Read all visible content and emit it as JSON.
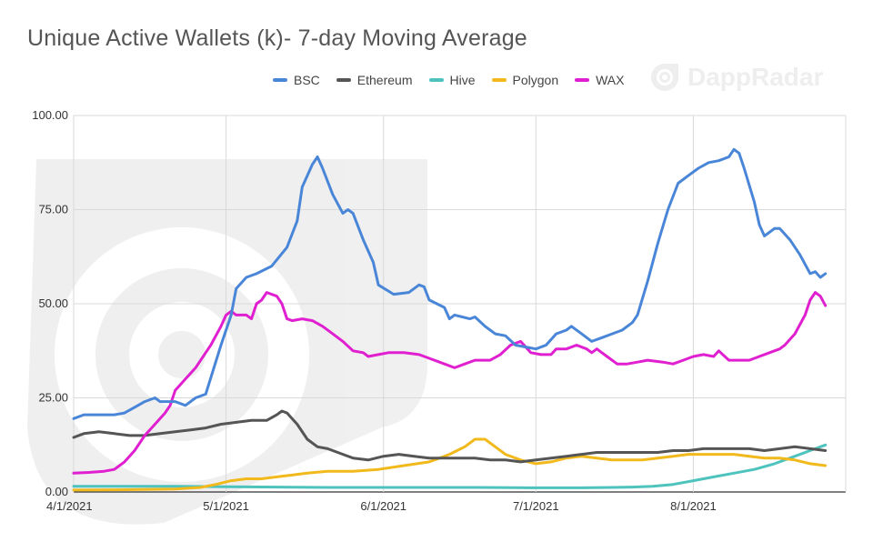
{
  "chart_data": {
    "type": "line",
    "title": "Unique Active Wallets (k)- 7-day Moving Average",
    "xlabel": "",
    "ylabel": "",
    "ylim": [
      0,
      100
    ],
    "yticks": [
      "0.00",
      "25.00",
      "50.00",
      "75.00",
      "100.00"
    ],
    "xticks": [
      "4/1/2021",
      "5/1/2021",
      "6/1/2021",
      "7/1/2021",
      "8/1/2021"
    ],
    "x_domain_days": [
      0,
      152
    ],
    "grid": true,
    "legend_position": "top-center",
    "series": [
      {
        "name": "BSC",
        "color": "#4a86d8",
        "points": [
          [
            0,
            19.5
          ],
          [
            2,
            20.5
          ],
          [
            5,
            20.5
          ],
          [
            8,
            20.5
          ],
          [
            10,
            21
          ],
          [
            12,
            22.5
          ],
          [
            14,
            24
          ],
          [
            16,
            25
          ],
          [
            17,
            24
          ],
          [
            20,
            24
          ],
          [
            22,
            23
          ],
          [
            24,
            25
          ],
          [
            26,
            26
          ],
          [
            29,
            39
          ],
          [
            31,
            47
          ],
          [
            32,
            54
          ],
          [
            34,
            57
          ],
          [
            36,
            58
          ],
          [
            39,
            60
          ],
          [
            42,
            65
          ],
          [
            44,
            72
          ],
          [
            45,
            81
          ],
          [
            47,
            87
          ],
          [
            48,
            89
          ],
          [
            49,
            86
          ],
          [
            51,
            79
          ],
          [
            53,
            74
          ],
          [
            54,
            75
          ],
          [
            55,
            74
          ],
          [
            57,
            67
          ],
          [
            59,
            61
          ],
          [
            60,
            55
          ],
          [
            63,
            52.5
          ],
          [
            66,
            53
          ],
          [
            68,
            55
          ],
          [
            69,
            54.5
          ],
          [
            70,
            51
          ],
          [
            73,
            49
          ],
          [
            74,
            46
          ],
          [
            75,
            47
          ],
          [
            78,
            46
          ],
          [
            79,
            46.5
          ],
          [
            81,
            44
          ],
          [
            83,
            42
          ],
          [
            85,
            41.5
          ],
          [
            87,
            39
          ],
          [
            89,
            38.5
          ],
          [
            91,
            38
          ],
          [
            93,
            39
          ],
          [
            95,
            42
          ],
          [
            97,
            43
          ],
          [
            98,
            44
          ],
          [
            100,
            42
          ],
          [
            102,
            40
          ],
          [
            104,
            41
          ],
          [
            106,
            42
          ],
          [
            108,
            43
          ],
          [
            110,
            45
          ],
          [
            111,
            47
          ],
          [
            113,
            56
          ],
          [
            115,
            66
          ],
          [
            117,
            75
          ],
          [
            119,
            82
          ],
          [
            121,
            84
          ],
          [
            123,
            86
          ],
          [
            125,
            87.5
          ],
          [
            127,
            88
          ],
          [
            129,
            89
          ],
          [
            130,
            91
          ],
          [
            131,
            90
          ],
          [
            132,
            86
          ],
          [
            134,
            77
          ],
          [
            135,
            71
          ],
          [
            136,
            68
          ],
          [
            138,
            70
          ],
          [
            139,
            70
          ],
          [
            141,
            67
          ],
          [
            143,
            63
          ],
          [
            145,
            58
          ],
          [
            146,
            58.5
          ],
          [
            147,
            57
          ],
          [
            148,
            58
          ]
        ]
      },
      {
        "name": "Ethereum",
        "color": "#555555",
        "points": [
          [
            0,
            14.5
          ],
          [
            2,
            15.5
          ],
          [
            5,
            16
          ],
          [
            8,
            15.5
          ],
          [
            11,
            15
          ],
          [
            14,
            15
          ],
          [
            17,
            15.5
          ],
          [
            20,
            16
          ],
          [
            23,
            16.5
          ],
          [
            26,
            17
          ],
          [
            29,
            18
          ],
          [
            32,
            18.5
          ],
          [
            35,
            19
          ],
          [
            38,
            19
          ],
          [
            40,
            20.5
          ],
          [
            41,
            21.5
          ],
          [
            42,
            21
          ],
          [
            44,
            18
          ],
          [
            46,
            14
          ],
          [
            48,
            12
          ],
          [
            50,
            11.5
          ],
          [
            52,
            10.5
          ],
          [
            55,
            9
          ],
          [
            58,
            8.5
          ],
          [
            61,
            9.5
          ],
          [
            64,
            10
          ],
          [
            67,
            9.5
          ],
          [
            70,
            9
          ],
          [
            73,
            9
          ],
          [
            76,
            9
          ],
          [
            79,
            9
          ],
          [
            82,
            8.5
          ],
          [
            85,
            8.5
          ],
          [
            88,
            8
          ],
          [
            91,
            8.5
          ],
          [
            94,
            9
          ],
          [
            97,
            9.5
          ],
          [
            100,
            10
          ],
          [
            103,
            10.5
          ],
          [
            106,
            10.5
          ],
          [
            109,
            10.5
          ],
          [
            112,
            10.5
          ],
          [
            115,
            10.5
          ],
          [
            118,
            11
          ],
          [
            121,
            11
          ],
          [
            124,
            11.5
          ],
          [
            127,
            11.5
          ],
          [
            130,
            11.5
          ],
          [
            133,
            11.5
          ],
          [
            136,
            11
          ],
          [
            139,
            11.5
          ],
          [
            142,
            12
          ],
          [
            145,
            11.5
          ],
          [
            148,
            11
          ]
        ]
      },
      {
        "name": "Hive",
        "color": "#4ec3bd",
        "points": [
          [
            0,
            1.5
          ],
          [
            10,
            1.5
          ],
          [
            20,
            1.5
          ],
          [
            30,
            1.4
          ],
          [
            40,
            1.3
          ],
          [
            50,
            1.2
          ],
          [
            60,
            1.2
          ],
          [
            70,
            1.2
          ],
          [
            80,
            1.2
          ],
          [
            90,
            1.1
          ],
          [
            100,
            1.1
          ],
          [
            106,
            1.2
          ],
          [
            110,
            1.3
          ],
          [
            114,
            1.5
          ],
          [
            118,
            2
          ],
          [
            122,
            3
          ],
          [
            126,
            4
          ],
          [
            130,
            5
          ],
          [
            134,
            6
          ],
          [
            138,
            7.5
          ],
          [
            142,
            9.5
          ],
          [
            146,
            11.5
          ],
          [
            148,
            12.5
          ]
        ]
      },
      {
        "name": "Polygon",
        "color": "#f1b91c",
        "points": [
          [
            0,
            0.5
          ],
          [
            10,
            0.6
          ],
          [
            20,
            0.8
          ],
          [
            25,
            1.2
          ],
          [
            28,
            2
          ],
          [
            31,
            3
          ],
          [
            34,
            3.5
          ],
          [
            37,
            3.5
          ],
          [
            40,
            4
          ],
          [
            43,
            4.5
          ],
          [
            46,
            5
          ],
          [
            50,
            5.5
          ],
          [
            55,
            5.5
          ],
          [
            60,
            6
          ],
          [
            65,
            7
          ],
          [
            70,
            8
          ],
          [
            74,
            10
          ],
          [
            77,
            12
          ],
          [
            79,
            14
          ],
          [
            81,
            14
          ],
          [
            83,
            12
          ],
          [
            85,
            10
          ],
          [
            88,
            8.5
          ],
          [
            91,
            7.5
          ],
          [
            94,
            8
          ],
          [
            97,
            9
          ],
          [
            100,
            9.5
          ],
          [
            103,
            9
          ],
          [
            106,
            8.5
          ],
          [
            109,
            8.5
          ],
          [
            112,
            8.5
          ],
          [
            115,
            9
          ],
          [
            118,
            9.5
          ],
          [
            121,
            10
          ],
          [
            124,
            10
          ],
          [
            127,
            10
          ],
          [
            130,
            10
          ],
          [
            133,
            9.5
          ],
          [
            136,
            9
          ],
          [
            139,
            9
          ],
          [
            142,
            8.5
          ],
          [
            145,
            7.5
          ],
          [
            148,
            7
          ]
        ]
      },
      {
        "name": "WAX",
        "color": "#e020d0",
        "points": [
          [
            0,
            5
          ],
          [
            3,
            5.2
          ],
          [
            6,
            5.5
          ],
          [
            8,
            6
          ],
          [
            10,
            8
          ],
          [
            12,
            11
          ],
          [
            14,
            15
          ],
          [
            16,
            18
          ],
          [
            18,
            21
          ],
          [
            19,
            23
          ],
          [
            20,
            27
          ],
          [
            22,
            30
          ],
          [
            24,
            33
          ],
          [
            26,
            37
          ],
          [
            27,
            39
          ],
          [
            29,
            44
          ],
          [
            30,
            47
          ],
          [
            31,
            48
          ],
          [
            32,
            47
          ],
          [
            34,
            47
          ],
          [
            35,
            46
          ],
          [
            36,
            50
          ],
          [
            37,
            51
          ],
          [
            38,
            53
          ],
          [
            40,
            52
          ],
          [
            41,
            50
          ],
          [
            42,
            46
          ],
          [
            43,
            45.5
          ],
          [
            45,
            46
          ],
          [
            47,
            45.5
          ],
          [
            49,
            44
          ],
          [
            51,
            42
          ],
          [
            53,
            40
          ],
          [
            55,
            37.5
          ],
          [
            57,
            37
          ],
          [
            58,
            36
          ],
          [
            60,
            36.5
          ],
          [
            62,
            37
          ],
          [
            65,
            37
          ],
          [
            68,
            36.5
          ],
          [
            70,
            35.5
          ],
          [
            73,
            34
          ],
          [
            75,
            33
          ],
          [
            77,
            34
          ],
          [
            79,
            35
          ],
          [
            82,
            35
          ],
          [
            84,
            36.5
          ],
          [
            86,
            39
          ],
          [
            88,
            40
          ],
          [
            90,
            37
          ],
          [
            92,
            36.5
          ],
          [
            94,
            36.5
          ],
          [
            95,
            38
          ],
          [
            97,
            38
          ],
          [
            99,
            39
          ],
          [
            101,
            38
          ],
          [
            102,
            37
          ],
          [
            103,
            38
          ],
          [
            105,
            36
          ],
          [
            107,
            34
          ],
          [
            109,
            34
          ],
          [
            111,
            34.5
          ],
          [
            113,
            35
          ],
          [
            116,
            34.5
          ],
          [
            118,
            34
          ],
          [
            120,
            35
          ],
          [
            122,
            36
          ],
          [
            124,
            36.5
          ],
          [
            126,
            36
          ],
          [
            127,
            37.5
          ],
          [
            129,
            35
          ],
          [
            131,
            35
          ],
          [
            133,
            35
          ],
          [
            135,
            36
          ],
          [
            137,
            37
          ],
          [
            139,
            38
          ],
          [
            140,
            39
          ],
          [
            142,
            42
          ],
          [
            144,
            47
          ],
          [
            145,
            51
          ],
          [
            146,
            53
          ],
          [
            147,
            52
          ],
          [
            148,
            49.5
          ]
        ]
      }
    ]
  },
  "watermark": {
    "brand_name": "DappRadar",
    "icon": "dappradar-logo-icon"
  }
}
